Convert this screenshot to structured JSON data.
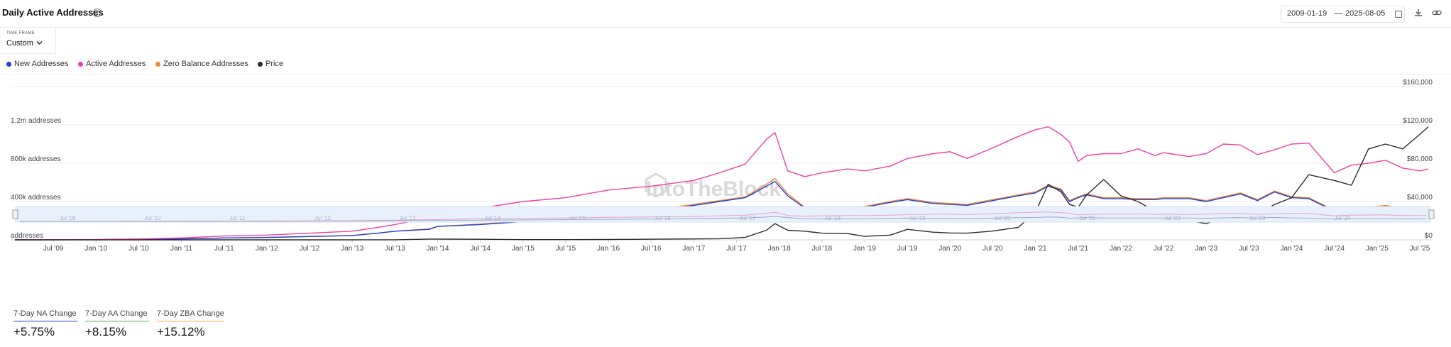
{
  "header": {
    "title": "Daily Active Addresses",
    "help_icon": "question-circle-icon",
    "date_from": "2009-01-19",
    "date_sep": "—",
    "date_to": "2025-08-05",
    "calendar_icon": "calendar-icon",
    "download_icon": "download-icon",
    "link_icon": "link-icon"
  },
  "timeframe": {
    "label": "TIME FRAME",
    "value": "Custom",
    "chevron_icon": "chevron-down-icon"
  },
  "legend": [
    {
      "label": "New Addresses",
      "color": "#1f3fd6"
    },
    {
      "label": "Active Addresses",
      "color": "#ee3fa8"
    },
    {
      "label": "Zero Balance Addresses",
      "color": "#f28a2d"
    },
    {
      "label": "Price",
      "color": "#2b2b2b"
    }
  ],
  "watermark": "IntoTheBlock",
  "stats": [
    {
      "label": "7-Day NA Change",
      "value": "+5.75%",
      "color": "#1f3fd6"
    },
    {
      "label": "7-Day AA Change",
      "value": "+8.15%",
      "color": "#4caf50"
    },
    {
      "label": "7-Day ZBA Change",
      "value": "+15.12%",
      "color": "#f2a33a"
    }
  ],
  "chart_data": {
    "type": "line",
    "title": "Daily Active Addresses",
    "x_ticks": [
      "Jul '09",
      "Jan '10",
      "Jul '10",
      "Jan '11",
      "Jul '11",
      "Jan '12",
      "Jul '12",
      "Jan '13",
      "Jul '13",
      "Jan '14",
      "Jul '14",
      "Jan '15",
      "Jul '15",
      "Jan '16",
      "Jul '16",
      "Jan '17",
      "Jul '17",
      "Jan '18",
      "Jul '18",
      "Jan '19",
      "Jul '19",
      "Jan '20",
      "Jul '20",
      "Jan '21",
      "Jul '21",
      "Jan '22",
      "Jul '22",
      "Jan '23",
      "Jul '23",
      "Jan '24",
      "Jul '24",
      "Jan '25",
      "Jul '25"
    ],
    "navigator_ticks": [
      "Jul '09",
      "Jul '10",
      "Jul '11",
      "Jul '12",
      "Jul '13",
      "Jul '14",
      "Jul '15",
      "Jul '16",
      "Jul '17",
      "Jul '18",
      "Jul '19",
      "Jul '20",
      "Jul '21",
      "Jul '22",
      "Jul '23",
      "Jul '24"
    ],
    "y_left": {
      "ticks": [
        "addresses",
        "400k addresses",
        "800k addresses",
        "1.2m addresses"
      ],
      "values": [
        0,
        400000,
        800000,
        1200000
      ],
      "min": 0,
      "max": 1600000
    },
    "y_right": {
      "ticks": [
        "$0",
        "$40,000",
        "$80,000",
        "$120,000",
        "$160,000"
      ],
      "values": [
        0,
        40000,
        80000,
        120000,
        160000
      ],
      "min": 0,
      "max": 160000
    },
    "x": [
      2009.05,
      2009.5,
      2010.0,
      2010.5,
      2011.0,
      2011.5,
      2012.0,
      2012.5,
      2013.0,
      2013.3,
      2013.5,
      2013.9,
      2014.0,
      2014.5,
      2015.0,
      2015.5,
      2016.0,
      2016.5,
      2017.0,
      2017.3,
      2017.6,
      2017.85,
      2017.95,
      2018.1,
      2018.3,
      2018.5,
      2018.8,
      2019.0,
      2019.3,
      2019.5,
      2019.8,
      2020.0,
      2020.2,
      2020.5,
      2020.8,
      2021.0,
      2021.15,
      2021.3,
      2021.4,
      2021.5,
      2021.6,
      2021.8,
      2022.0,
      2022.2,
      2022.4,
      2022.5,
      2022.8,
      2023.0,
      2023.2,
      2023.4,
      2023.6,
      2023.8,
      2024.0,
      2024.2,
      2024.5,
      2024.7,
      2024.9,
      2025.1,
      2025.3,
      2025.5,
      2025.6
    ],
    "series": [
      {
        "name": "New Addresses",
        "color": "#1f3fd6",
        "values": [
          0,
          1000,
          2000,
          5000,
          10000,
          20000,
          25000,
          35000,
          45000,
          70000,
          90000,
          110000,
          140000,
          160000,
          190000,
          220000,
          260000,
          300000,
          360000,
          400000,
          440000,
          560000,
          610000,
          460000,
          330000,
          320000,
          330000,
          340000,
          390000,
          420000,
          380000,
          370000,
          360000,
          410000,
          460000,
          490000,
          560000,
          520000,
          400000,
          440000,
          470000,
          430000,
          430000,
          420000,
          420000,
          430000,
          430000,
          400000,
          440000,
          480000,
          410000,
          500000,
          440000,
          430000,
          300000,
          330000,
          330000,
          350000,
          320000,
          320000,
          330000
        ]
      },
      {
        "name": "Active Addresses",
        "color": "#ee3fa8",
        "values": [
          0,
          2000,
          4000,
          10000,
          20000,
          40000,
          50000,
          70000,
          90000,
          130000,
          160000,
          230000,
          260000,
          330000,
          400000,
          440000,
          520000,
          560000,
          620000,
          700000,
          790000,
          1050000,
          1120000,
          720000,
          660000,
          700000,
          740000,
          720000,
          770000,
          850000,
          900000,
          920000,
          850000,
          960000,
          1080000,
          1150000,
          1180000,
          1100000,
          1020000,
          820000,
          880000,
          900000,
          900000,
          950000,
          880000,
          910000,
          870000,
          900000,
          1000000,
          990000,
          890000,
          940000,
          1000000,
          1010000,
          700000,
          780000,
          800000,
          830000,
          750000,
          720000,
          740000
        ]
      },
      {
        "name": "Zero Balance Addresses",
        "color": "#f28a2d",
        "values": [
          0,
          1000,
          2000,
          5000,
          10000,
          20000,
          25000,
          35000,
          45000,
          70000,
          90000,
          115000,
          140000,
          165000,
          195000,
          225000,
          270000,
          310000,
          370000,
          410000,
          450000,
          580000,
          640000,
          480000,
          340000,
          330000,
          340000,
          350000,
          400000,
          430000,
          390000,
          380000,
          370000,
          420000,
          470000,
          500000,
          570000,
          530000,
          410000,
          450000,
          480000,
          440000,
          440000,
          430000,
          430000,
          440000,
          440000,
          410000,
          450000,
          490000,
          420000,
          510000,
          450000,
          440000,
          310000,
          340000,
          340000,
          360000,
          330000,
          330000,
          340000
        ]
      },
      {
        "name": "Price",
        "color": "#2b2b2b",
        "values": [
          0,
          0,
          0,
          0,
          0,
          10,
          5,
          10,
          15,
          100,
          100,
          800,
          800,
          600,
          250,
          250,
          400,
          650,
          1000,
          1200,
          2500,
          10000,
          17000,
          10000,
          9000,
          7000,
          6500,
          3600,
          5000,
          11000,
          8000,
          7200,
          7000,
          9200,
          13000,
          29000,
          58000,
          50000,
          37000,
          34000,
          47000,
          63000,
          46000,
          40000,
          30000,
          20000,
          20000,
          17000,
          24000,
          27000,
          26000,
          37000,
          44000,
          68000,
          62000,
          57000,
          95000,
          100000,
          95000,
          110000,
          118000
        ]
      }
    ]
  }
}
